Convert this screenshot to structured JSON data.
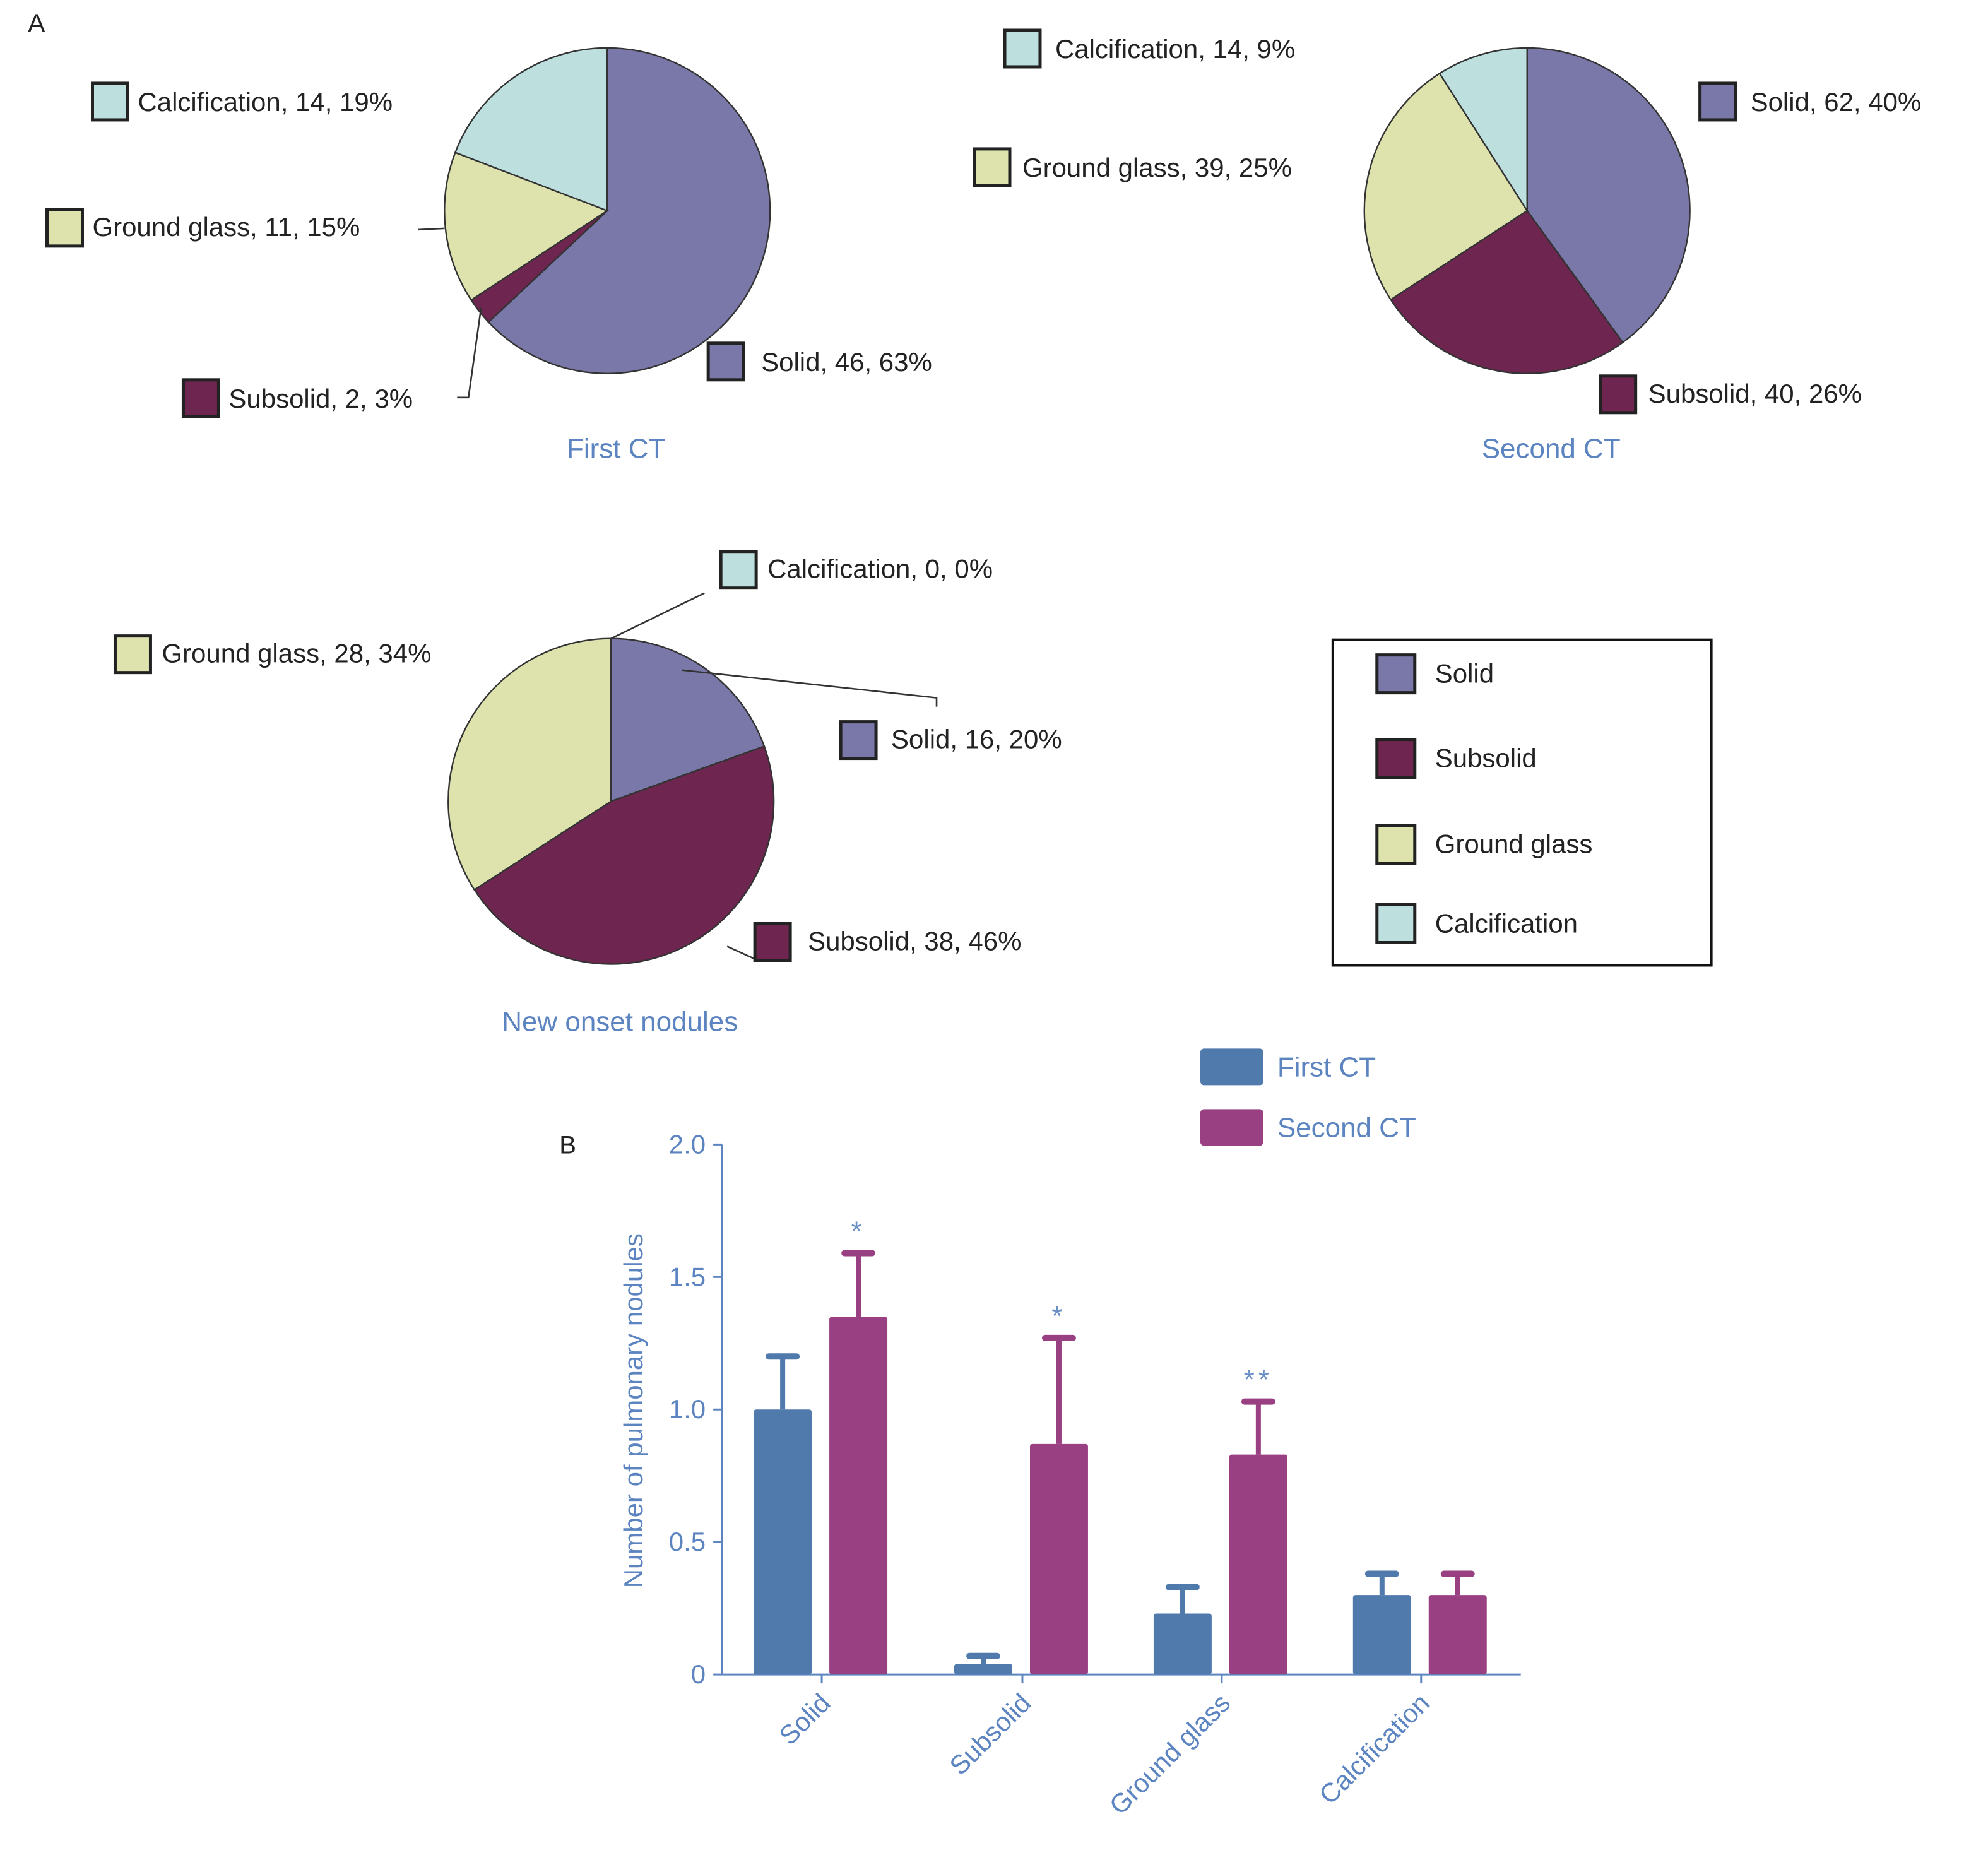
{
  "panels": {
    "a_label": "A",
    "b_label": "B"
  },
  "colors": {
    "solid": "#7a78a8",
    "subsolid": "#6e2550",
    "ground_glass": "#dee3ae",
    "calcification": "#bde0df",
    "title_blue": "#5c84c0",
    "bar_first": "#5079ac",
    "bar_second": "#994082",
    "star": "#6a90c6"
  },
  "pie_legend": {
    "items": [
      {
        "key": "solid",
        "label": "Solid"
      },
      {
        "key": "subsolid",
        "label": "Subsolid"
      },
      {
        "key": "ground_glass",
        "label": "Ground glass"
      },
      {
        "key": "calcification",
        "label": "Calcification"
      }
    ]
  },
  "chart_data": [
    {
      "type": "pie",
      "title": "First CT",
      "slices": [
        {
          "key": "solid",
          "name": "Solid",
          "value": 46,
          "percent": 63,
          "label": "Solid, 46, 63%"
        },
        {
          "key": "subsolid",
          "name": "Subsolid",
          "value": 2,
          "percent": 3,
          "label": "Subsolid, 2, 3%"
        },
        {
          "key": "ground_glass",
          "name": "Ground glass",
          "value": 11,
          "percent": 15,
          "label": "Ground glass, 11, 15%"
        },
        {
          "key": "calcification",
          "name": "Calcification",
          "value": 14,
          "percent": 19,
          "label": "Calcification, 14, 19%"
        }
      ]
    },
    {
      "type": "pie",
      "title": "Second CT",
      "slices": [
        {
          "key": "solid",
          "name": "Solid",
          "value": 62,
          "percent": 40,
          "label": "Solid, 62, 40%"
        },
        {
          "key": "subsolid",
          "name": "Subsolid",
          "value": 40,
          "percent": 26,
          "label": "Subsolid, 40, 26%"
        },
        {
          "key": "ground_glass",
          "name": "Ground glass",
          "value": 39,
          "percent": 25,
          "label": "Ground glass, 39, 25%"
        },
        {
          "key": "calcification",
          "name": "Calcification",
          "value": 14,
          "percent": 9,
          "label": "Calcification, 14, 9%"
        }
      ]
    },
    {
      "type": "pie",
      "title": "New onset nodules",
      "slices": [
        {
          "key": "solid",
          "name": "Solid",
          "value": 16,
          "percent": 20,
          "label": "Solid, 16, 20%"
        },
        {
          "key": "subsolid",
          "name": "Subsolid",
          "value": 38,
          "percent": 46,
          "label": "Subsolid, 38, 46%"
        },
        {
          "key": "ground_glass",
          "name": "Ground glass",
          "value": 28,
          "percent": 34,
          "label": "Ground glass, 28, 34%"
        },
        {
          "key": "calcification",
          "name": "Calcification",
          "value": 0,
          "percent": 0,
          "label": "Calcification, 0, 0%"
        }
      ]
    },
    {
      "type": "bar",
      "ylabel": "Number of pulmonary nodules",
      "ylim": [
        0,
        2.0
      ],
      "yticks": [
        "0",
        "0.5",
        "1.0",
        "1.5",
        "2.0"
      ],
      "categories": [
        "Solid",
        "Subsolid",
        "Ground glass",
        "Calcification"
      ],
      "series": [
        {
          "name": "First CT",
          "values": [
            1.0,
            0.04,
            0.23,
            0.3
          ],
          "error": [
            0.2,
            0.03,
            0.1,
            0.08
          ]
        },
        {
          "name": "Second CT",
          "values": [
            1.35,
            0.87,
            0.83,
            0.3
          ],
          "error": [
            0.24,
            0.4,
            0.2,
            0.08
          ]
        }
      ],
      "significance": [
        "*",
        "*",
        "**",
        ""
      ],
      "legend": "top-right",
      "grid": false
    }
  ]
}
